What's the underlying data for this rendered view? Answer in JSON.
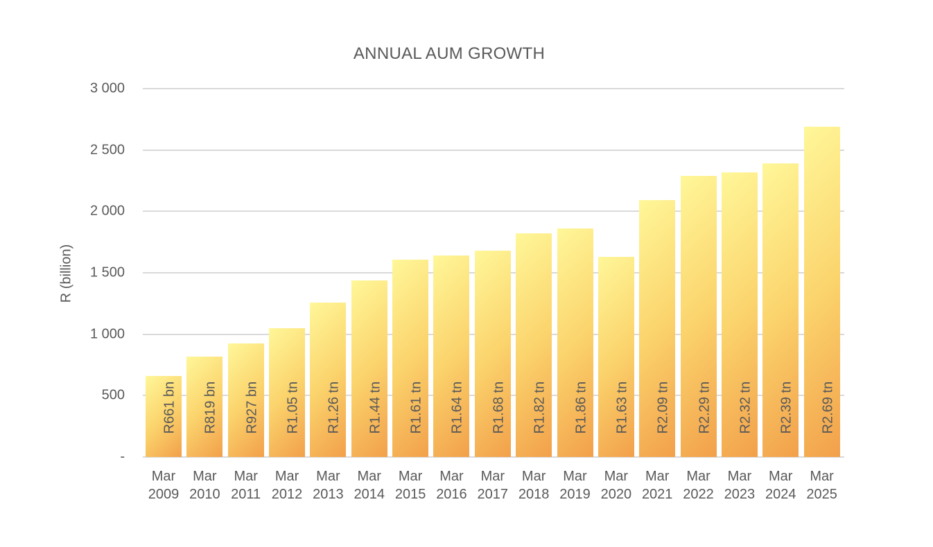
{
  "chart_data": {
    "type": "bar",
    "title": "ANNUAL AUM GROWTH",
    "xlabel": "",
    "ylabel": "R (billion)",
    "ylim": [
      0,
      3000
    ],
    "yticks": [
      "-",
      "500",
      "1 000",
      "1 500",
      "2 000",
      "2 500",
      "3 000"
    ],
    "grid": true,
    "legend": null,
    "categories": [
      "Mar 2009",
      "Mar 2010",
      "Mar 2011",
      "Mar 2012",
      "Mar 2013",
      "Mar 2014",
      "Mar 2015",
      "Mar 2016",
      "Mar 2017",
      "Mar 2018",
      "Mar 2019",
      "Mar 2020",
      "Mar 2021",
      "Mar 2022",
      "Mar 2023",
      "Mar 2024",
      "Mar 2025"
    ],
    "values": [
      661,
      819,
      927,
      1050,
      1260,
      1440,
      1610,
      1640,
      1680,
      1820,
      1860,
      1630,
      2090,
      2290,
      2320,
      2390,
      2690
    ],
    "data_labels": [
      "R661 bn",
      "R819 bn",
      "R927 bn",
      "R1.05 tn",
      "R1.26 tn",
      "R1.44 tn",
      "R1.61 tn",
      "R1.64 tn",
      "R1.68 tn",
      "R1.82 tn",
      "R1.86 tn",
      "R1.63 tn",
      "R2.09 tn",
      "R2.29 tn",
      "R2.32 tn",
      "R2.39 tn",
      "R2.69 tn"
    ],
    "colors": {
      "bar_gradient_start": "#fff799",
      "bar_gradient_mid": "#fbd46d",
      "bar_gradient_end": "#f2a04a",
      "grid": "#d9d9d9",
      "text": "#595959"
    }
  },
  "x_labels": [
    {
      "month": "Mar",
      "year": "2009"
    },
    {
      "month": "Mar",
      "year": "2010"
    },
    {
      "month": "Mar",
      "year": "2011"
    },
    {
      "month": "Mar",
      "year": "2012"
    },
    {
      "month": "Mar",
      "year": "2013"
    },
    {
      "month": "Mar",
      "year": "2014"
    },
    {
      "month": "Mar",
      "year": "2015"
    },
    {
      "month": "Mar",
      "year": "2016"
    },
    {
      "month": "Mar",
      "year": "2017"
    },
    {
      "month": "Mar",
      "year": "2018"
    },
    {
      "month": "Mar",
      "year": "2019"
    },
    {
      "month": "Mar",
      "year": "2020"
    },
    {
      "month": "Mar",
      "year": "2021"
    },
    {
      "month": "Mar",
      "year": "2022"
    },
    {
      "month": "Mar",
      "year": "2023"
    },
    {
      "month": "Mar",
      "year": "2024"
    },
    {
      "month": "Mar",
      "year": "2025"
    }
  ]
}
